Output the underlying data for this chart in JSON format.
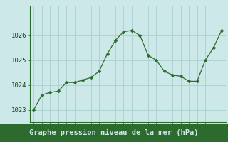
{
  "x": [
    0,
    1,
    2,
    3,
    4,
    5,
    6,
    7,
    8,
    9,
    10,
    11,
    12,
    13,
    14,
    15,
    16,
    17,
    18,
    19,
    20,
    21,
    22,
    23
  ],
  "y": [
    1023.0,
    1023.6,
    1023.7,
    1023.75,
    1024.1,
    1024.1,
    1024.2,
    1024.3,
    1024.55,
    1025.25,
    1025.8,
    1026.15,
    1026.2,
    1026.0,
    1025.2,
    1025.0,
    1024.55,
    1024.4,
    1024.35,
    1024.15,
    1024.15,
    1025.0,
    1025.5,
    1026.2
  ],
  "line_color": "#2d6a2d",
  "marker": "D",
  "marker_size": 2.5,
  "bg_color": "#cce8e8",
  "grid_color": "#aad0d0",
  "xlabel": "Graphe pression niveau de la mer (hPa)",
  "xlabel_bg_color": "#2d6a2d",
  "xlabel_text_color": "#cce8e8",
  "xlabel_fontsize": 7.5,
  "tick_color": "#1a4a1a",
  "tick_fontsize": 6.5,
  "ylim": [
    1022.5,
    1027.2
  ],
  "yticks": [
    1023,
    1024,
    1025,
    1026
  ],
  "xlim": [
    -0.5,
    23.5
  ],
  "xticks": [
    0,
    1,
    2,
    3,
    4,
    5,
    6,
    7,
    8,
    9,
    10,
    11,
    12,
    13,
    14,
    15,
    16,
    17,
    18,
    19,
    20,
    21,
    22,
    23
  ]
}
